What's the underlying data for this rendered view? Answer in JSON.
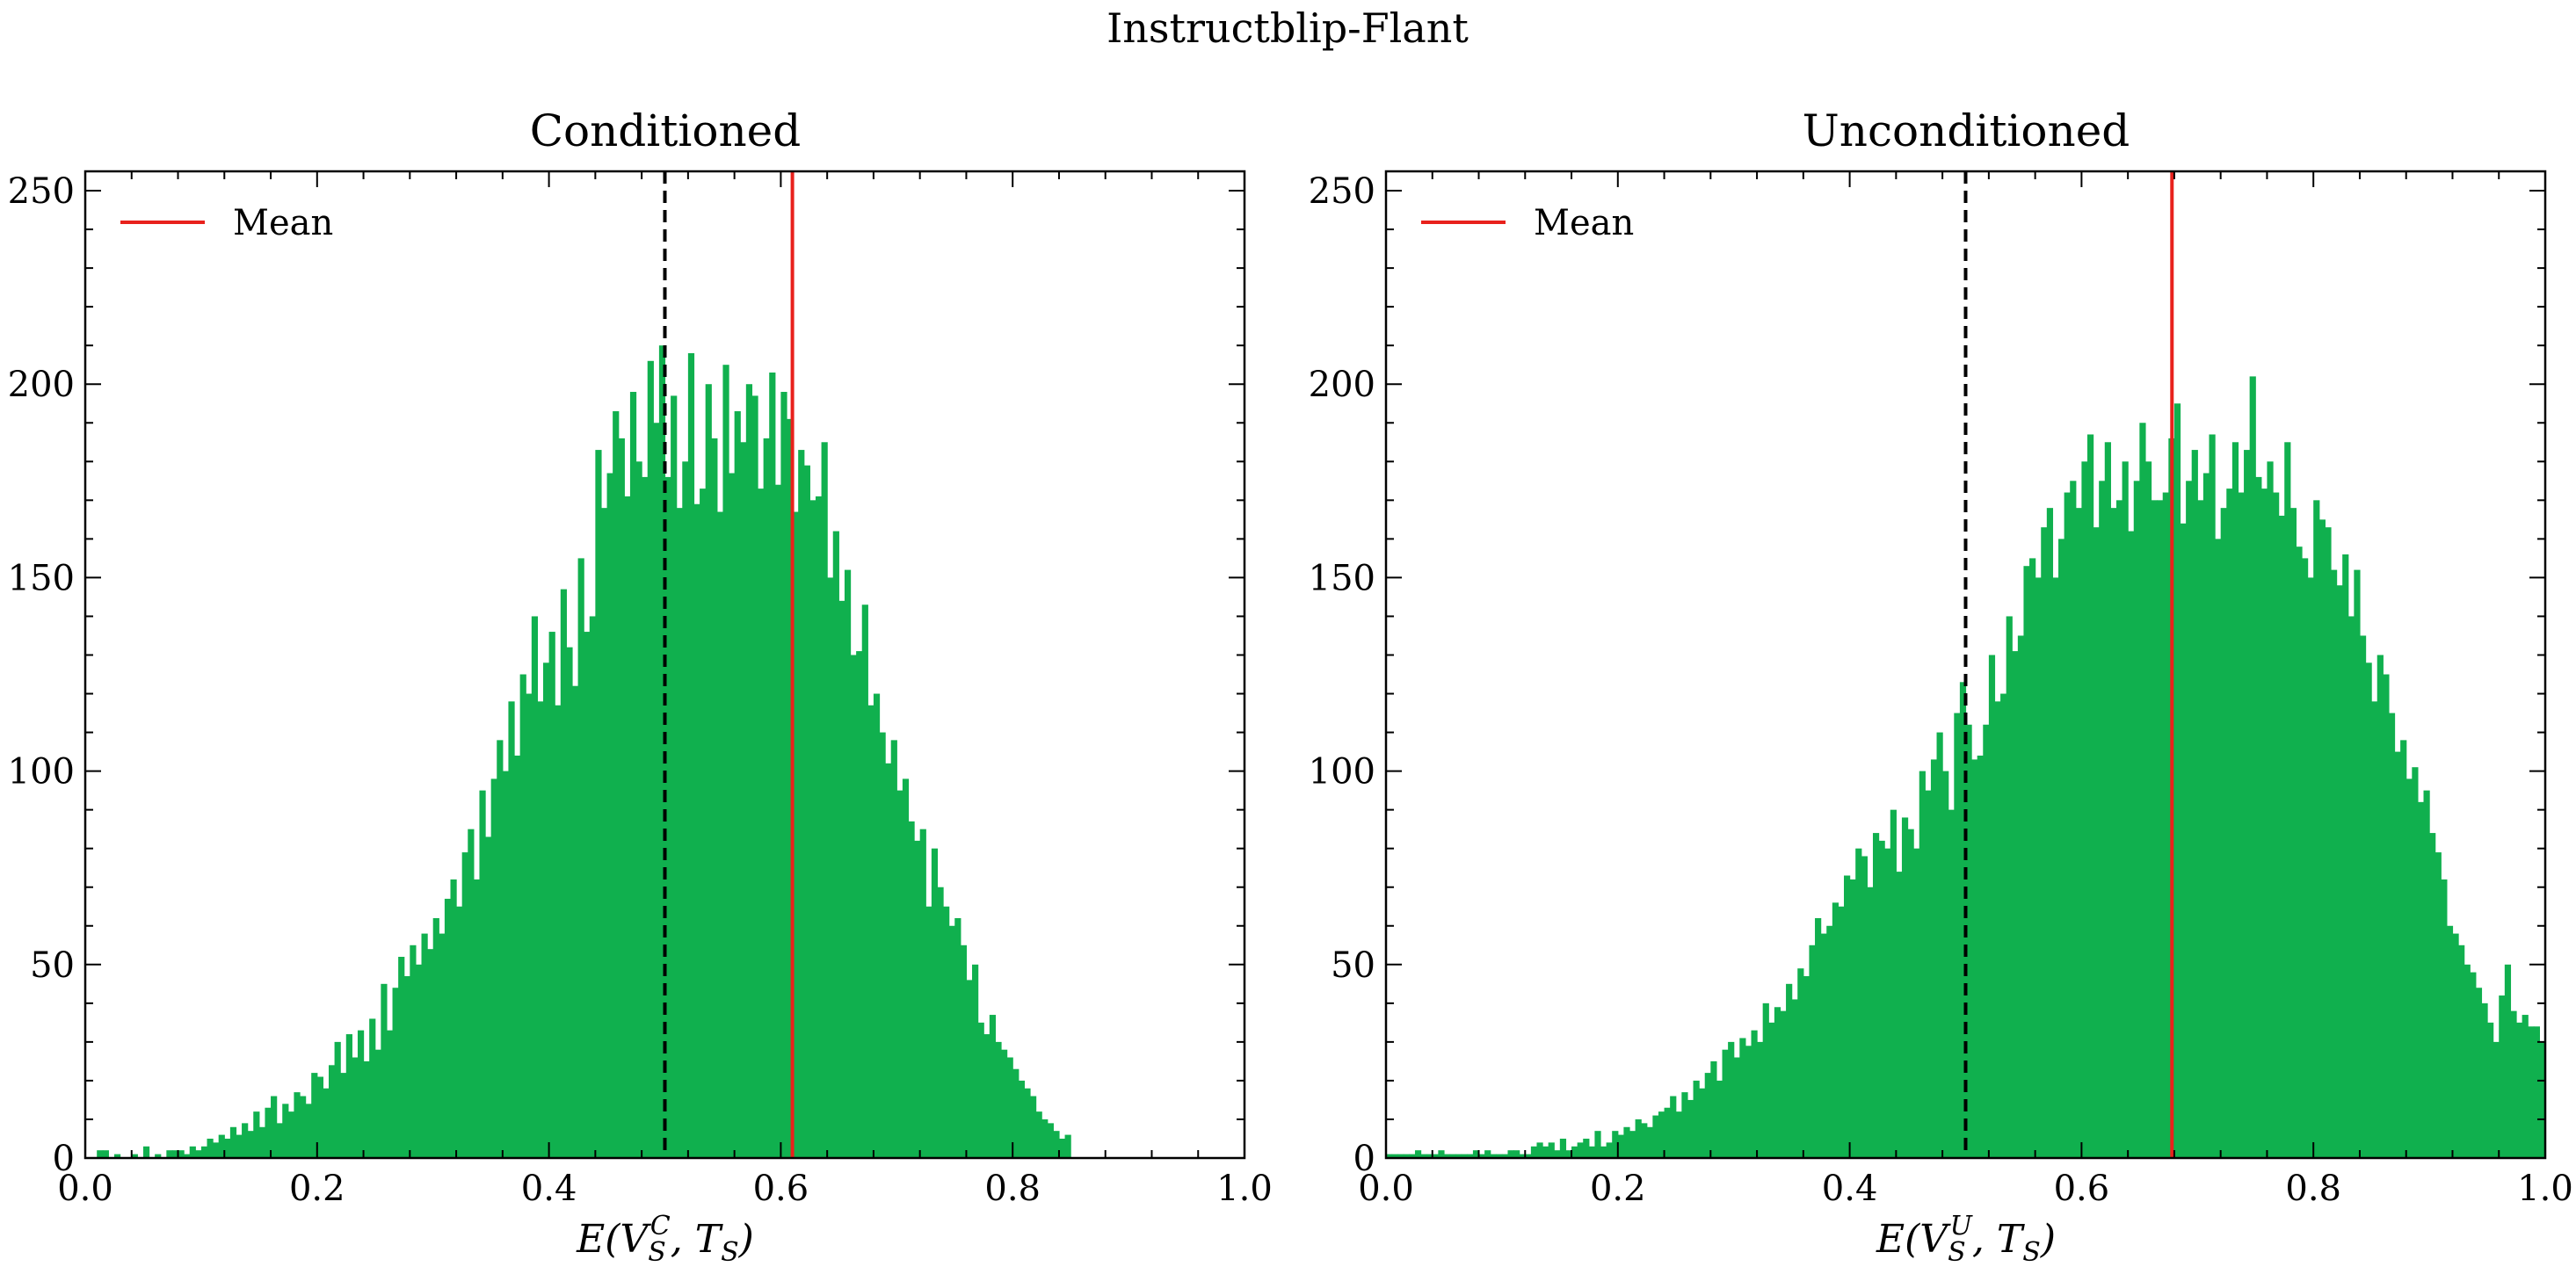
{
  "figure_title": "Instructblip-Flant",
  "colors": {
    "bar": "#10b04e",
    "mean": "#e8211c",
    "threshold": "#000000"
  },
  "chart_data": [
    {
      "type": "bar",
      "title": "Conditioned",
      "xlabel": "E(V_S^C, T_S)",
      "xlabel_parts": {
        "pre": "E(V",
        "sub": "S",
        "sup": "C",
        "mid": ", T",
        "sub2": "S",
        "post": ")"
      },
      "xlim": [
        0,
        1
      ],
      "ylim": [
        0,
        255
      ],
      "xticks": [
        "0.0",
        "0.2",
        "0.4",
        "0.6",
        "0.8",
        "1.0"
      ],
      "yticks": [
        "0",
        "50",
        "100",
        "150",
        "200",
        "250"
      ],
      "legend": {
        "label": "Mean",
        "position": "upper left"
      },
      "mean": 0.61,
      "threshold": 0.5,
      "bin_start": 0.01,
      "bin_width": 0.005,
      "values": [
        2,
        2,
        0,
        1,
        0,
        0,
        1,
        0,
        3,
        0,
        1,
        0,
        2,
        2,
        2,
        1,
        3,
        2,
        3,
        5,
        4,
        6,
        5,
        8,
        6,
        9,
        7,
        12,
        8,
        13,
        16,
        9,
        14,
        12,
        17,
        16,
        14,
        22,
        21,
        18,
        24,
        30,
        22,
        32,
        26,
        33,
        25,
        36,
        28,
        45,
        33,
        44,
        52,
        47,
        55,
        50,
        58,
        54,
        62,
        58,
        67,
        72,
        65,
        79,
        85,
        72,
        95,
        83,
        98,
        108,
        100,
        118,
        104,
        125,
        120,
        140,
        118,
        128,
        136,
        117,
        147,
        132,
        122,
        155,
        136,
        140,
        183,
        168,
        177,
        193,
        186,
        171,
        198,
        180,
        176,
        206,
        190,
        210,
        176,
        197,
        168,
        180,
        208,
        169,
        173,
        200,
        186,
        167,
        205,
        177,
        193,
        185,
        200,
        197,
        173,
        186,
        203,
        174,
        198,
        191,
        167,
        183,
        179,
        170,
        171,
        185,
        150,
        162,
        144,
        152,
        130,
        131,
        143,
        117,
        120,
        110,
        102,
        108,
        95,
        98,
        87,
        82,
        85,
        65,
        80,
        70,
        65,
        60,
        62,
        55,
        46,
        50,
        35,
        32,
        37,
        30,
        28,
        26,
        23,
        20,
        18,
        16,
        12,
        10,
        9,
        7,
        5,
        6
      ],
      "visible_ranges": [
        [
          0.01,
          0.985
        ]
      ]
    },
    {
      "type": "bar",
      "title": "Unconditioned",
      "xlabel": "E(V_S^U, T_S)",
      "xlabel_parts": {
        "pre": "E(V",
        "sub": "S",
        "sup": "U",
        "mid": ", T",
        "sub2": "S",
        "post": ")"
      },
      "xlim": [
        0,
        1
      ],
      "ylim": [
        0,
        255
      ],
      "xticks": [
        "0.0",
        "0.2",
        "0.4",
        "0.6",
        "0.8",
        "1.0"
      ],
      "yticks": [
        "0",
        "50",
        "100",
        "150",
        "200",
        "250"
      ],
      "legend": {
        "label": "Mean",
        "position": "upper left"
      },
      "mean": 0.678,
      "threshold": 0.5,
      "bin_start": 0.0,
      "bin_width": 0.005,
      "values": [
        1,
        1,
        1,
        1,
        1,
        2,
        1,
        1,
        1,
        2,
        1,
        1,
        1,
        1,
        1,
        2,
        1,
        2,
        1,
        1,
        1,
        2,
        2,
        1,
        1,
        3,
        4,
        3,
        4,
        2,
        5,
        2,
        3,
        4,
        5,
        3,
        7,
        3,
        4,
        7,
        6,
        8,
        7,
        10,
        9,
        8,
        11,
        12,
        13,
        16,
        12,
        17,
        15,
        20,
        18,
        22,
        25,
        20,
        28,
        30,
        26,
        31,
        29,
        33,
        30,
        40,
        35,
        39,
        38,
        45,
        41,
        49,
        47,
        55,
        62,
        58,
        60,
        66,
        65,
        73,
        72,
        80,
        78,
        70,
        84,
        82,
        80,
        90,
        74,
        88,
        85,
        80,
        100,
        95,
        103,
        110,
        100,
        90,
        115,
        123,
        112,
        103,
        104,
        112,
        130,
        118,
        120,
        140,
        131,
        135,
        153,
        155,
        150,
        163,
        168,
        150,
        160,
        172,
        175,
        168,
        180,
        187,
        163,
        175,
        185,
        168,
        170,
        180,
        162,
        175,
        190,
        180,
        170,
        170,
        172,
        186,
        195,
        164,
        175,
        183,
        170,
        177,
        187,
        160,
        168,
        173,
        185,
        172,
        183,
        202,
        176,
        173,
        180,
        172,
        166,
        185,
        168,
        158,
        155,
        150,
        170,
        165,
        163,
        152,
        148,
        156,
        140,
        152,
        135,
        128,
        118,
        130,
        125,
        115,
        105,
        108,
        98,
        101,
        92,
        95,
        84,
        79,
        72,
        60,
        58,
        55,
        50,
        48,
        44,
        40,
        35,
        30,
        42,
        50,
        38,
        35,
        37,
        34,
        34,
        30,
        28,
        25,
        20,
        15,
        10,
        8,
        5
      ]
    }
  ]
}
